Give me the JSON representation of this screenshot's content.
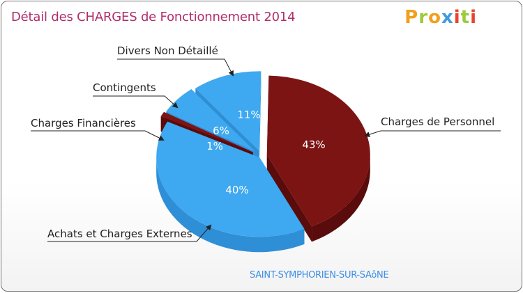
{
  "title": "Détail des CHARGES de Fonctionnement 2014",
  "logo": {
    "text": "Proxiti",
    "letters": [
      "P",
      "r",
      "o",
      "x",
      "i",
      "t",
      "i"
    ],
    "colors": [
      "#f0a01e",
      "#9ccb3b",
      "#f0a01e",
      "#3f9be0",
      "#e8452c",
      "#9ccb3b",
      "#e8452c"
    ]
  },
  "city": "SAINT-SYMPHORIEN-SUR-SAôNE",
  "chart_data": {
    "type": "pie",
    "title": "Détail des CHARGES de Fonctionnement 2014",
    "slices": [
      {
        "label": "Charges de Personnel",
        "value": 43,
        "pct_label": "43%",
        "color": "#7c1414",
        "side": "#5a0b0b"
      },
      {
        "label": "Achats et Charges Externes",
        "value": 40,
        "pct_label": "40%",
        "color": "#3ea8f0",
        "side": "#2f8fd6"
      },
      {
        "label": "Charges Financières",
        "value": 1,
        "pct_label": "1%",
        "color": "#7c1414",
        "side": "#5a0b0b"
      },
      {
        "label": "Contingents",
        "value": 6,
        "pct_label": "6%",
        "color": "#3ea8f0",
        "side": "#2f8fd6"
      },
      {
        "label": "Divers Non Détaillé",
        "value": 11,
        "pct_label": "11%",
        "color": "#3ea8f0",
        "side": "#2f8fd6"
      }
    ]
  }
}
